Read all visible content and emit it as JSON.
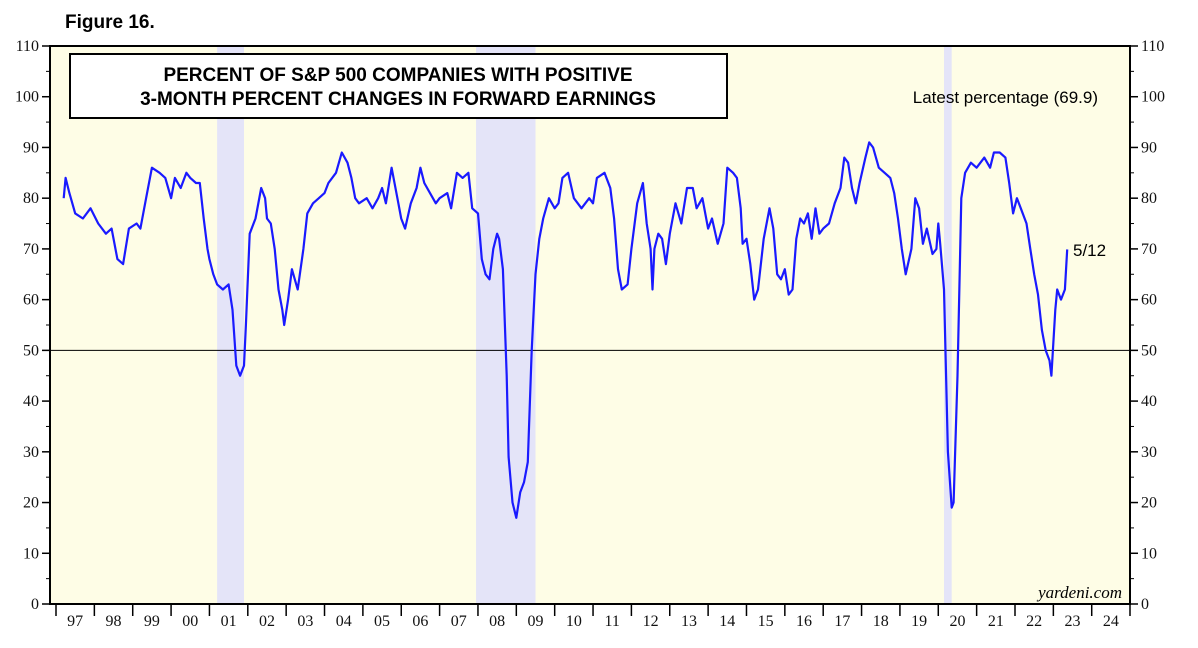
{
  "figure_label": "Figure 16.",
  "chart_data": {
    "type": "line",
    "title": [
      "PERCENT OF S&P 500 COMPANIES WITH POSITIVE",
      "3-MONTH PERCENT CHANGES IN FORWARD EARNINGS"
    ],
    "xlabel": "",
    "ylabel": "",
    "ylim": [
      0,
      110
    ],
    "yticks": [
      0,
      10,
      20,
      30,
      40,
      50,
      60,
      70,
      80,
      90,
      100,
      110
    ],
    "xticks": [
      "97",
      "98",
      "99",
      "00",
      "01",
      "02",
      "03",
      "04",
      "05",
      "06",
      "07",
      "08",
      "09",
      "10",
      "11",
      "12",
      "13",
      "14",
      "15",
      "16",
      "17",
      "18",
      "19",
      "20",
      "21",
      "22",
      "23",
      "24"
    ],
    "xlim": [
      1997,
      2025
    ],
    "reference_line": 50,
    "recessions": [
      [
        2001.2,
        2001.9
      ],
      [
        2007.95,
        2009.5
      ],
      [
        2020.15,
        2020.35
      ]
    ],
    "annotations": {
      "latest": "Latest percentage (69.9)",
      "date": "5/12",
      "source": "yardeni.com"
    },
    "colors": {
      "line": "#1a1aff",
      "background": "#fefde6",
      "recession": "#e4e4f8"
    },
    "series": [
      {
        "x": [
          1997.2,
          1997.25,
          1997.35,
          1997.5,
          1997.7,
          1997.9,
          1998.1,
          1998.3,
          1998.45,
          1998.6,
          1998.75,
          1998.9,
          1999.1,
          1999.2,
          1999.35,
          1999.5,
          1999.7,
          1999.85,
          2000.0,
          2000.1,
          2000.25,
          2000.4,
          2000.5,
          2000.65,
          2000.75,
          2000.85,
          2000.95,
          2001.0,
          2001.1,
          2001.2,
          2001.35,
          2001.5,
          2001.6,
          2001.7,
          2001.8,
          2001.9,
          2001.95,
          2002.05,
          2002.2,
          2002.35,
          2002.45,
          2002.5,
          2002.6,
          2002.7,
          2002.8,
          2002.9,
          2002.95,
          2003.05,
          2003.15,
          2003.3,
          2003.45,
          2003.55,
          2003.7,
          2003.85,
          2004.0,
          2004.1,
          2004.3,
          2004.45,
          2004.6,
          2004.7,
          2004.8,
          2004.9,
          2005.1,
          2005.25,
          2005.4,
          2005.5,
          2005.6,
          2005.75,
          2005.9,
          2006.0,
          2006.1,
          2006.25,
          2006.4,
          2006.5,
          2006.6,
          2006.75,
          2006.9,
          2007.0,
          2007.2,
          2007.3,
          2007.45,
          2007.6,
          2007.75,
          2007.85,
          2008.0,
          2008.1,
          2008.2,
          2008.3,
          2008.4,
          2008.5,
          2008.55,
          2008.65,
          2008.75,
          2008.8,
          2008.9,
          2009.0,
          2009.1,
          2009.2,
          2009.3,
          2009.4,
          2009.5,
          2009.6,
          2009.7,
          2009.85,
          2010.0,
          2010.1,
          2010.2,
          2010.35,
          2010.5,
          2010.7,
          2010.9,
          2011.0,
          2011.1,
          2011.3,
          2011.45,
          2011.55,
          2011.65,
          2011.75,
          2011.9,
          2012.0,
          2012.15,
          2012.3,
          2012.4,
          2012.5,
          2012.55,
          2012.6,
          2012.7,
          2012.8,
          2012.9,
          2013.0,
          2013.15,
          2013.3,
          2013.45,
          2013.6,
          2013.7,
          2013.85,
          2014.0,
          2014.1,
          2014.25,
          2014.4,
          2014.5,
          2014.65,
          2014.75,
          2014.85,
          2014.9,
          2015.0,
          2015.1,
          2015.2,
          2015.3,
          2015.45,
          2015.6,
          2015.7,
          2015.8,
          2015.9,
          2016.0,
          2016.1,
          2016.2,
          2016.3,
          2016.4,
          2016.5,
          2016.6,
          2016.7,
          2016.8,
          2016.9,
          2017.0,
          2017.15,
          2017.3,
          2017.45,
          2017.55,
          2017.65,
          2017.75,
          2017.85,
          2017.95,
          2018.1,
          2018.2,
          2018.3,
          2018.45,
          2018.6,
          2018.75,
          2018.85,
          2018.95,
          2019.05,
          2019.15,
          2019.3,
          2019.4,
          2019.5,
          2019.6,
          2019.7,
          2019.85,
          2019.95,
          2020.0,
          2020.05,
          2020.15,
          2020.25,
          2020.35,
          2020.4,
          2020.5,
          2020.6,
          2020.7,
          2020.85,
          2021.0,
          2021.2,
          2021.35,
          2021.45,
          2021.6,
          2021.75,
          2021.85,
          2021.95,
          2022.05,
          2022.15,
          2022.3,
          2022.4,
          2022.5,
          2022.6,
          2022.7,
          2022.8,
          2022.9,
          2022.95,
          2023.05,
          2023.1,
          2023.2,
          2023.3,
          2023.36
        ],
        "values": [
          80,
          84,
          81,
          77,
          76,
          78,
          75,
          73,
          74,
          68,
          67,
          74,
          75,
          74,
          80,
          86,
          85,
          84,
          80,
          84,
          82,
          85,
          84,
          83,
          83,
          76,
          70,
          68,
          65,
          63,
          62,
          63,
          58,
          47,
          45,
          47,
          55,
          73,
          76,
          82,
          80,
          76,
          75,
          70,
          62,
          58,
          55,
          60,
          66,
          62,
          70,
          77,
          79,
          80,
          81,
          83,
          85,
          89,
          87,
          84,
          80,
          79,
          80,
          78,
          80,
          82,
          79,
          86,
          80,
          76,
          74,
          79,
          82,
          86,
          83,
          81,
          79,
          80,
          81,
          78,
          85,
          84,
          85,
          78,
          77,
          68,
          65,
          64,
          70,
          73,
          72,
          66,
          45,
          29,
          20,
          17,
          22,
          24,
          28,
          50,
          65,
          72,
          76,
          80,
          78,
          79,
          84,
          85,
          80,
          78,
          80,
          79,
          84,
          85,
          82,
          76,
          66,
          62,
          63,
          70,
          79,
          83,
          75,
          70,
          62,
          70,
          73,
          72,
          67,
          73,
          79,
          75,
          82,
          82,
          78,
          80,
          74,
          76,
          71,
          75,
          86,
          85,
          84,
          78,
          71,
          72,
          67,
          60,
          62,
          72,
          78,
          74,
          65,
          64,
          66,
          61,
          62,
          72,
          76,
          75,
          77,
          72,
          78,
          73,
          74,
          75,
          79,
          82,
          88,
          87,
          82,
          79,
          83,
          88,
          91,
          90,
          86,
          85,
          84,
          81,
          76,
          70,
          65,
          70,
          80,
          78,
          71,
          74,
          69,
          70,
          75,
          71,
          62,
          30,
          19,
          20,
          45,
          80,
          85,
          87,
          86,
          88,
          86,
          89,
          89,
          88,
          83,
          77,
          80,
          78,
          75,
          70,
          65,
          61,
          54,
          50,
          48,
          45,
          58,
          62,
          60,
          62,
          69.9
        ]
      }
    ]
  }
}
